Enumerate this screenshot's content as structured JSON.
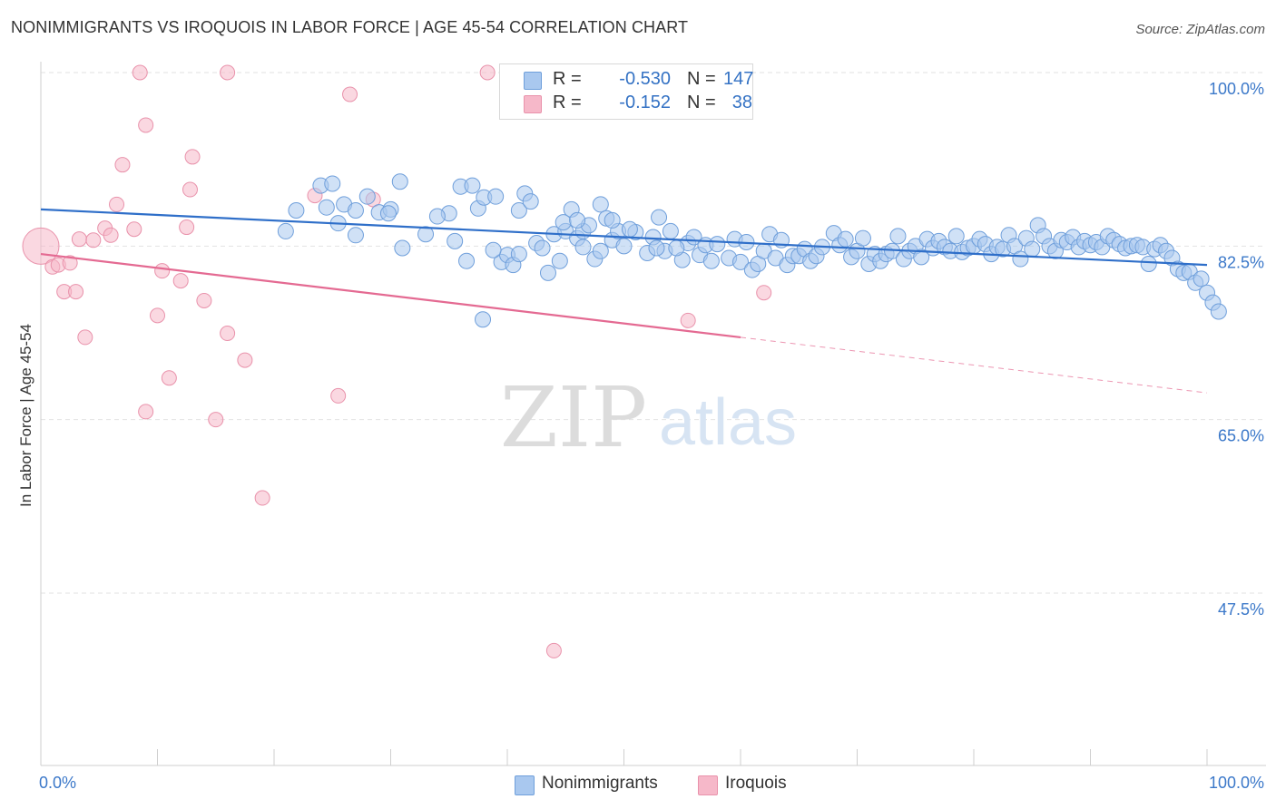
{
  "header": {
    "title": "NONIMMIGRANTS VS IROQUOIS IN LABOR FORCE | AGE 45-54 CORRELATION CHART",
    "source": "Source: ZipAtlas.com"
  },
  "watermark": {
    "zip": "ZIP",
    "atlas": "atlas"
  },
  "stats_legend": {
    "rows": [
      {
        "r_label": "R =",
        "r_value": "-0.530",
        "n_label": "N =",
        "n_value": "147",
        "color": "#a9c8ef"
      },
      {
        "r_label": "R =",
        "r_value": "-0.152",
        "n_label": "N =",
        "n_value": "38",
        "color": "#f6b8c9"
      }
    ]
  },
  "bottom_legend": {
    "items": [
      {
        "label": "Nonimmigrants",
        "color": "#a9c8ef"
      },
      {
        "label": "Iroquois",
        "color": "#f6b8c9"
      }
    ]
  },
  "chart_data": {
    "type": "scatter",
    "title": "NONIMMIGRANTS VS IROQUOIS IN LABOR FORCE | AGE 45-54 CORRELATION CHART",
    "xlabel": "",
    "ylabel": "In Labor Force | Age 45-54",
    "x_range": [
      0,
      100
    ],
    "y_range": [
      32,
      103
    ],
    "x_tick_labels": [
      "0.0%",
      "100.0%"
    ],
    "y_ticks": [
      100.0,
      82.5,
      65.0,
      47.5
    ],
    "y_tick_labels": [
      "100.0%",
      "82.5%",
      "65.0%",
      "47.5%"
    ],
    "grid": true,
    "legend_position": "bottom",
    "colors": {
      "blue_fill": "#a9c8ef",
      "blue_stroke": "#6f9fdb",
      "blue_line": "#2f6fc9",
      "pink_fill": "#f6b8c9",
      "pink_stroke": "#e992ab",
      "pink_line": "#e46a92",
      "axis_label": "#3b78c9"
    },
    "series": [
      {
        "name": "Nonimmigrants",
        "color": "#a9c8ef",
        "trend": {
          "x": [
            0,
            100
          ],
          "y": [
            86.2,
            80.6
          ]
        },
        "points": [
          [
            21.9,
            86.1
          ],
          [
            24.0,
            88.6
          ],
          [
            25.0,
            88.8
          ],
          [
            26.0,
            86.7
          ],
          [
            27.0,
            86.1
          ],
          [
            28.0,
            87.5
          ],
          [
            29.0,
            85.9
          ],
          [
            30.0,
            86.2
          ],
          [
            24.5,
            86.4
          ],
          [
            25.5,
            84.8
          ],
          [
            27.0,
            83.6
          ],
          [
            31.0,
            82.3
          ],
          [
            33.0,
            83.7
          ],
          [
            35.0,
            85.8
          ],
          [
            36.0,
            88.5
          ],
          [
            37.0,
            88.6
          ],
          [
            35.5,
            83.0
          ],
          [
            36.5,
            81.0
          ],
          [
            37.5,
            86.3
          ],
          [
            38.0,
            87.4
          ],
          [
            39.0,
            87.5
          ],
          [
            39.5,
            80.9
          ],
          [
            40.0,
            81.6
          ],
          [
            40.5,
            80.6
          ],
          [
            41.0,
            86.1
          ],
          [
            41.5,
            87.8
          ],
          [
            42.0,
            87.0
          ],
          [
            42.5,
            82.8
          ],
          [
            43.5,
            79.8
          ],
          [
            44.0,
            83.7
          ],
          [
            44.5,
            81.0
          ],
          [
            45.0,
            84.0
          ],
          [
            45.5,
            86.2
          ],
          [
            46.0,
            83.3
          ],
          [
            46.5,
            84.0
          ],
          [
            47.0,
            84.6
          ],
          [
            47.5,
            81.2
          ],
          [
            48.0,
            86.7
          ],
          [
            48.5,
            85.3
          ],
          [
            49.0,
            83.1
          ],
          [
            49.5,
            84.0
          ],
          [
            50.0,
            82.5
          ],
          [
            51.0,
            83.9
          ],
          [
            52.0,
            81.8
          ],
          [
            52.5,
            83.4
          ],
          [
            53.0,
            85.4
          ],
          [
            53.5,
            82.0
          ],
          [
            54.0,
            84.0
          ],
          [
            55.0,
            81.1
          ],
          [
            55.5,
            82.8
          ],
          [
            56.0,
            83.4
          ],
          [
            56.5,
            81.6
          ],
          [
            57.0,
            82.6
          ],
          [
            57.5,
            81.0
          ],
          [
            58.0,
            82.7
          ],
          [
            59.0,
            81.3
          ],
          [
            59.5,
            83.2
          ],
          [
            60.0,
            80.9
          ],
          [
            60.5,
            82.9
          ],
          [
            61.0,
            80.1
          ],
          [
            61.5,
            80.7
          ],
          [
            62.0,
            82.0
          ],
          [
            62.5,
            83.7
          ],
          [
            63.0,
            81.3
          ],
          [
            63.5,
            83.1
          ],
          [
            64.0,
            80.6
          ],
          [
            64.5,
            81.5
          ],
          [
            65.0,
            81.5
          ],
          [
            65.5,
            82.2
          ],
          [
            66.0,
            81.0
          ],
          [
            66.5,
            81.5
          ],
          [
            67.0,
            82.4
          ],
          [
            68.0,
            83.8
          ],
          [
            68.5,
            82.6
          ],
          [
            69.0,
            83.2
          ],
          [
            69.5,
            81.4
          ],
          [
            70.0,
            82.0
          ],
          [
            70.5,
            83.3
          ],
          [
            71.0,
            80.7
          ],
          [
            71.5,
            81.7
          ],
          [
            72.0,
            81.0
          ],
          [
            72.5,
            81.7
          ],
          [
            73.0,
            82.0
          ],
          [
            73.5,
            83.5
          ],
          [
            74.0,
            81.2
          ],
          [
            74.5,
            82.0
          ],
          [
            75.0,
            82.5
          ],
          [
            75.5,
            81.4
          ],
          [
            76.0,
            83.2
          ],
          [
            76.5,
            82.3
          ],
          [
            77.0,
            83.0
          ],
          [
            77.5,
            82.4
          ],
          [
            78.0,
            82.0
          ],
          [
            78.5,
            83.5
          ],
          [
            79.0,
            81.9
          ],
          [
            79.5,
            82.3
          ],
          [
            80.0,
            82.5
          ],
          [
            80.5,
            83.2
          ],
          [
            81.0,
            82.7
          ],
          [
            81.5,
            81.7
          ],
          [
            82.0,
            82.4
          ],
          [
            82.5,
            82.2
          ],
          [
            83.0,
            83.6
          ],
          [
            83.5,
            82.5
          ],
          [
            84.0,
            81.2
          ],
          [
            84.5,
            83.3
          ],
          [
            85.0,
            82.2
          ],
          [
            85.5,
            84.6
          ],
          [
            86.0,
            83.5
          ],
          [
            86.5,
            82.5
          ],
          [
            87.0,
            82.0
          ],
          [
            87.5,
            83.1
          ],
          [
            88.0,
            82.9
          ],
          [
            88.5,
            83.4
          ],
          [
            89.0,
            82.4
          ],
          [
            89.5,
            83.0
          ],
          [
            90.0,
            82.6
          ],
          [
            90.5,
            82.9
          ],
          [
            91.0,
            82.4
          ],
          [
            91.5,
            83.5
          ],
          [
            92.0,
            83.1
          ],
          [
            92.5,
            82.7
          ],
          [
            93.0,
            82.3
          ],
          [
            93.5,
            82.5
          ],
          [
            94.0,
            82.6
          ],
          [
            94.5,
            82.4
          ],
          [
            95.0,
            80.7
          ],
          [
            95.5,
            82.2
          ],
          [
            96.0,
            82.6
          ],
          [
            96.5,
            82.0
          ],
          [
            97.0,
            81.3
          ],
          [
            97.5,
            80.2
          ],
          [
            98.0,
            79.8
          ],
          [
            98.5,
            79.9
          ],
          [
            99.0,
            78.8
          ],
          [
            99.5,
            79.2
          ],
          [
            100.0,
            77.8
          ],
          [
            100.5,
            76.8
          ],
          [
            101.0,
            75.9
          ],
          [
            21.0,
            84.0
          ],
          [
            29.8,
            85.8
          ],
          [
            30.8,
            89.0
          ],
          [
            34.0,
            85.5
          ],
          [
            38.8,
            82.1
          ],
          [
            41.0,
            81.7
          ],
          [
            43.0,
            82.3
          ],
          [
            44.8,
            84.9
          ],
          [
            46.0,
            85.1
          ],
          [
            48.0,
            82.0
          ],
          [
            50.5,
            84.2
          ],
          [
            52.8,
            82.3
          ],
          [
            54.5,
            82.3
          ],
          [
            46.5,
            82.4
          ],
          [
            49.0,
            85.1
          ],
          [
            37.9,
            75.1
          ]
        ]
      },
      {
        "name": "Iroquois",
        "color": "#f6b8c9",
        "trend": {
          "x": [
            0,
            60
          ],
          "y": [
            81.7,
            73.3
          ]
        },
        "trend_extension": {
          "x": [
            60,
            100
          ],
          "y": [
            73.3,
            67.7
          ]
        },
        "points": [
          [
            0.0,
            82.5
          ],
          [
            1.0,
            80.4
          ],
          [
            1.5,
            80.6
          ],
          [
            2.0,
            77.9
          ],
          [
            2.5,
            80.8
          ],
          [
            3.0,
            77.9
          ],
          [
            3.3,
            83.2
          ],
          [
            3.8,
            73.3
          ],
          [
            4.5,
            83.1
          ],
          [
            5.5,
            84.3
          ],
          [
            6.0,
            83.6
          ],
          [
            6.5,
            86.7
          ],
          [
            7.0,
            90.7
          ],
          [
            8.0,
            84.2
          ],
          [
            8.5,
            100.0
          ],
          [
            9.0,
            94.7
          ],
          [
            9.0,
            65.8
          ],
          [
            10.0,
            75.5
          ],
          [
            10.4,
            80.0
          ],
          [
            11.0,
            69.2
          ],
          [
            12.0,
            79.0
          ],
          [
            12.5,
            84.4
          ],
          [
            12.8,
            88.2
          ],
          [
            13.0,
            91.5
          ],
          [
            14.0,
            77.0
          ],
          [
            15.0,
            65.0
          ],
          [
            16.0,
            73.7
          ],
          [
            16.0,
            100.0
          ],
          [
            17.5,
            71.0
          ],
          [
            19.0,
            57.1
          ],
          [
            23.5,
            87.6
          ],
          [
            25.5,
            67.4
          ],
          [
            26.5,
            97.8
          ],
          [
            28.5,
            87.2
          ],
          [
            38.3,
            100.0
          ],
          [
            44.0,
            41.7
          ],
          [
            55.5,
            75.0
          ],
          [
            62.0,
            77.8
          ]
        ]
      }
    ]
  }
}
